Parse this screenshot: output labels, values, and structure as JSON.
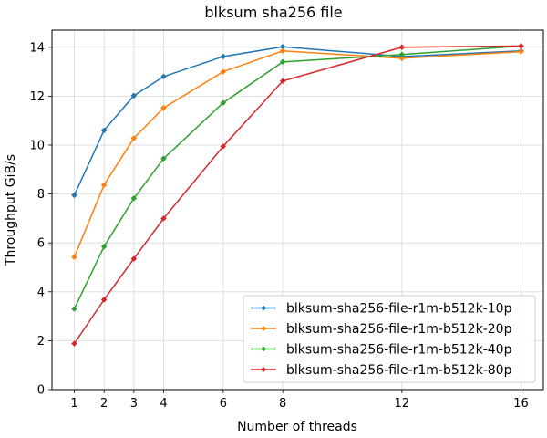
{
  "chart_data": {
    "type": "line",
    "title": "blksum sha256 file",
    "xlabel": "Number of threads",
    "ylabel": "Throughput GiB/s",
    "x": [
      1,
      2,
      3,
      4,
      6,
      8,
      12,
      16
    ],
    "xlim": [
      0.25,
      16.75
    ],
    "ylim": [
      0,
      14.7
    ],
    "xticks": [
      1,
      2,
      3,
      4,
      6,
      8,
      12,
      16
    ],
    "yticks": [
      0,
      2,
      4,
      6,
      8,
      10,
      12,
      14
    ],
    "grid": true,
    "legend_position": "lower-right",
    "marker": "diamond",
    "series": [
      {
        "name": "blksum-sha256-file-r1m-b512k-10p",
        "color": "#1f77b4",
        "values": [
          7.95,
          10.6,
          12.02,
          12.8,
          13.62,
          14.02,
          13.62,
          13.85
        ]
      },
      {
        "name": "blksum-sha256-file-r1m-b512k-20p",
        "color": "#ff7f0e",
        "values": [
          5.42,
          8.37,
          10.28,
          11.52,
          13.0,
          13.85,
          13.55,
          13.82
        ]
      },
      {
        "name": "blksum-sha256-file-r1m-b512k-40p",
        "color": "#2ca02c",
        "values": [
          3.3,
          5.85,
          7.82,
          9.45,
          11.73,
          13.4,
          13.7,
          14.05
        ]
      },
      {
        "name": "blksum-sha256-file-r1m-b512k-80p",
        "color": "#d62728",
        "values": [
          1.88,
          3.68,
          5.35,
          7.0,
          9.95,
          12.62,
          14.0,
          14.05
        ]
      }
    ]
  }
}
